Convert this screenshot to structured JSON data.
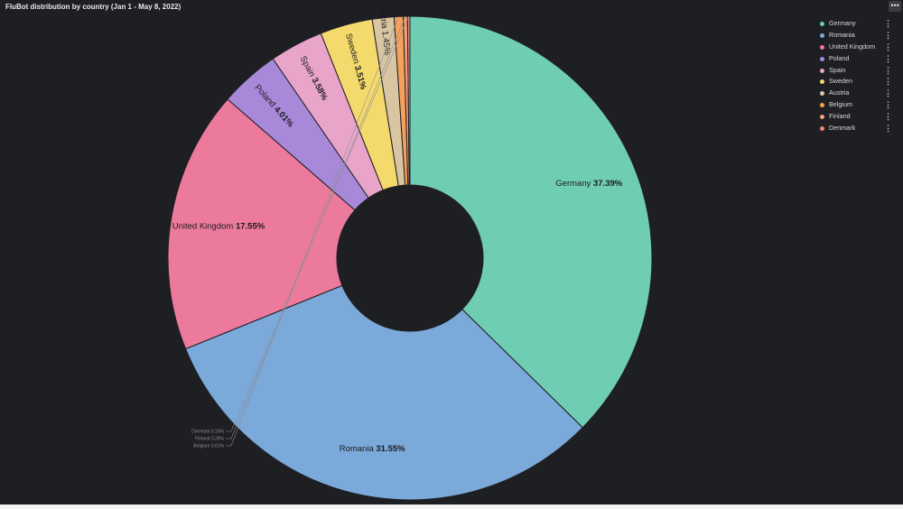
{
  "panel": {
    "title": "FluBot distribution by country (Jan 1 - May 8, 2022)",
    "menu_icon": "more-horizontal-icon"
  },
  "chart_data": {
    "type": "pie",
    "title": "FluBot distribution by country (Jan 1 - May 8, 2022)",
    "donut": true,
    "legend_position": "top-right",
    "categories": [
      "Germany",
      "Romania",
      "United Kingdom",
      "Poland",
      "Spain",
      "Sweden",
      "Austria",
      "Belgium",
      "Finland",
      "Denmark"
    ],
    "values": [
      37.39,
      31.55,
      17.55,
      4.01,
      3.58,
      3.51,
      1.45,
      0.61,
      0.28,
      0.16
    ],
    "labels": [
      "37.39%",
      "31.55%",
      "17.55%",
      "4.01%",
      "3.58%",
      "3.51%",
      "1.45%",
      "0.61%",
      "0.28%",
      "0.16%"
    ],
    "colors": [
      "#6fcdb4",
      "#7aa9da",
      "#ec7a9d",
      "#a888d9",
      "#e8a4c9",
      "#f4da6c",
      "#d9c5a2",
      "#f5a15a",
      "#f49f7d",
      "#ee8c72"
    ]
  }
}
